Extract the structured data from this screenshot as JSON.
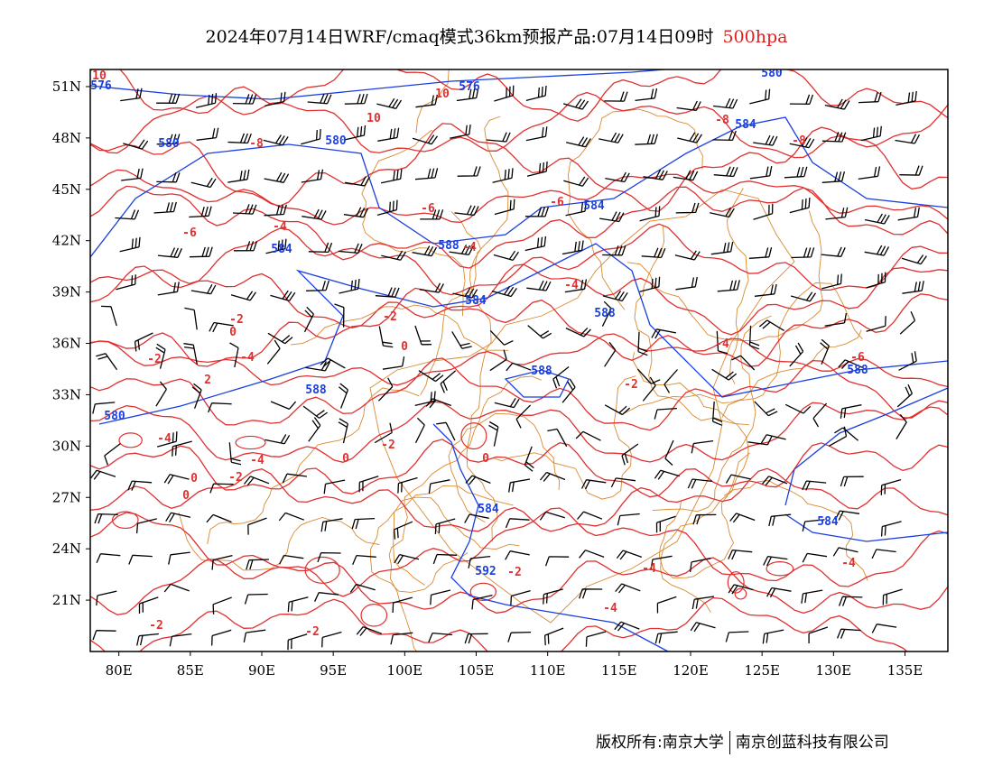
{
  "header": {
    "title": "2024年07月14日WRF/cmaq模式36km预报产品:07月14日09时",
    "level": "500hpa"
  },
  "map": {
    "lon_range": [
      78,
      138
    ],
    "lat_range": [
      18,
      52
    ],
    "x_ticks": [
      "80E",
      "85E",
      "90E",
      "95E",
      "100E",
      "105E",
      "110E",
      "115E",
      "120E",
      "125E",
      "130E",
      "135E"
    ],
    "y_ticks": [
      "51N",
      "48N",
      "45N",
      "42N",
      "39N",
      "36N",
      "33N",
      "30N",
      "27N",
      "24N",
      "21N"
    ],
    "colors": {
      "height_contour": "#1a3fe0",
      "temperature_contour": "#e03030",
      "borders": "#d98a30",
      "wind_barbs": "#000000"
    },
    "height_labels": [
      "576",
      "576",
      "580",
      "580",
      "580",
      "584",
      "584",
      "584",
      "584",
      "588",
      "588",
      "588",
      "588",
      "588",
      "580",
      "584",
      "592",
      "584"
    ],
    "temp_labels": [
      "10",
      "10",
      "10",
      "-8",
      "-8",
      "-8",
      "-6",
      "-6",
      "-6",
      "-6",
      "-4",
      "-4",
      "-4",
      "-4",
      "-4",
      "-4",
      "-4",
      "-4",
      "-2",
      "-2",
      "-2",
      "-2",
      "-2",
      "-2",
      "-2",
      "-2",
      "0",
      "0",
      "0",
      "0",
      "0",
      "0",
      "2",
      "-2",
      "-4",
      "-4"
    ]
  },
  "credit": {
    "left": "版权所有:南京大学",
    "right": "南京创蓝科技有限公司"
  }
}
